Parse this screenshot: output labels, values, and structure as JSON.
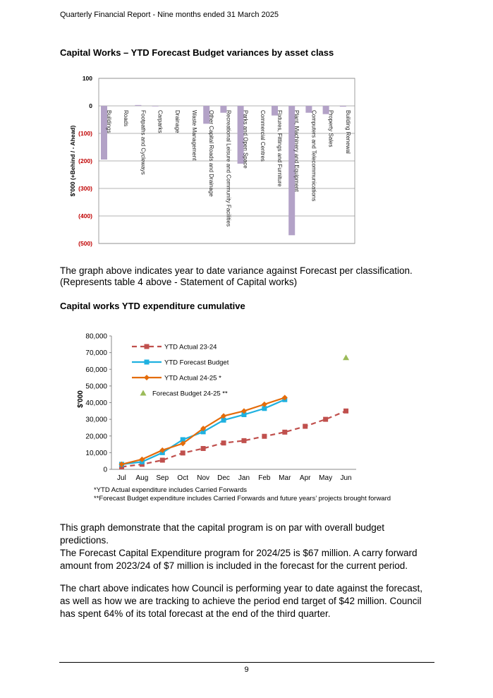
{
  "header": "Quarterly Financial Report - Nine months ended 31 March 2025",
  "headings": [
    "Capital Works – YTD Forecast Budget variances by asset class",
    "Capital works YTD expenditure cumulative"
  ],
  "paragraphs": [
    "The graph above indicates year to date variance against Forecast per classification.",
    "(Represents table 4 above - Statement of Capital works)",
    "This graph demonstrate that the capital program is on par with overall budget predictions.",
    "The Forecast Capital Expenditure program for 2024/25 is $67 million. A carry forward amount from 2023/24 of $7 million is included in the forecast for the current period.",
    "The chart above indicates how Council is performing year to date against the forecast, as well as how we are tracking to achieve the period end target of $42 million. Council has spent 64% of its total forecast at the end of the third quarter."
  ],
  "chart_data": [
    {
      "type": "bar",
      "y_label": "$'000 (+Behind / - Ahead)",
      "categories": [
        "Buildings",
        "Roads",
        "Footpaths and Cycleways",
        "Carparks",
        "Drainage",
        "Waste Management",
        "Other Capital Roads and Drainage",
        "Recreational Leisure and Community Facilities",
        "Parks and Open Space",
        "Commercial Centres",
        "Fixtures, Fittings and Furniture",
        "Plant, Machinery and Equipment",
        "Computers and Telecommunications",
        "Property Sales",
        "Building Renewal"
      ],
      "values": [
        -195,
        0,
        3,
        -2,
        0,
        0,
        -65,
        -25,
        -210,
        0,
        -35,
        -470,
        -25,
        -30,
        -3
      ],
      "color": "#b3a2c7",
      "ylim": [
        -500,
        100
      ],
      "yticks": [
        {
          "value": -500,
          "label": "(500)"
        },
        {
          "value": -400,
          "label": "(400)"
        },
        {
          "value": -300,
          "label": "(300)"
        },
        {
          "value": -200,
          "label": "(200)"
        },
        {
          "value": -100,
          "label": "(100)"
        },
        0,
        100
      ],
      "grid": true
    },
    {
      "type": "line",
      "y_label": "$'000",
      "categories": [
        "Jul",
        "Aug",
        "Sep",
        "Oct",
        "Nov",
        "Dec",
        "Jan",
        "Feb",
        "Mar",
        "Apr",
        "May",
        "Jun"
      ],
      "series": [
        {
          "name": "YTD Actual 23-24",
          "color": "#c0504d",
          "line": "dashed",
          "marker": "square",
          "values": [
            1500,
            3000,
            5500,
            9800,
            12500,
            15800,
            17200,
            19800,
            22300,
            25800,
            30000,
            35000
          ]
        },
        {
          "name": "YTD  Forecast Budget",
          "color": "#1fb1e0",
          "line": "solid",
          "marker": "square",
          "values": [
            3000,
            4500,
            10000,
            17800,
            22500,
            29500,
            32800,
            36500,
            41800,
            null,
            null,
            null
          ]
        },
        {
          "name": "YTD  Actual 24-25 *",
          "color": "#e46c0a",
          "line": "solid",
          "marker": "diamond",
          "values": [
            3000,
            6000,
            11500,
            15500,
            24500,
            32000,
            35000,
            39000,
            43000,
            null,
            null,
            null
          ]
        },
        {
          "name": "Forecast Budget 24-25 **",
          "color": "#9bbb59",
          "line": "none",
          "marker": "triangle",
          "values": [
            null,
            null,
            null,
            null,
            null,
            null,
            null,
            null,
            null,
            null,
            null,
            67000
          ]
        }
      ],
      "ylim": [
        0,
        80000
      ],
      "yticks": [
        0,
        {
          "value": 10000,
          "label": "10,000"
        },
        {
          "value": 20000,
          "label": "20,000"
        },
        {
          "value": 30000,
          "label": "30,000"
        },
        {
          "value": 40000,
          "label": "40,000"
        },
        {
          "value": 50000,
          "label": "50,000"
        },
        {
          "value": 60000,
          "label": "60,000"
        },
        {
          "value": 70000,
          "label": "70,000"
        },
        {
          "value": 80000,
          "label": "80,000"
        }
      ],
      "legend": "top-left",
      "notes": [
        "*YTD Actual expenditure includes Carried Forwards",
        "**Forecast Budget expenditure includes Carried Forwards and future years’ projects brought forward"
      ]
    }
  ],
  "page_number": "9"
}
